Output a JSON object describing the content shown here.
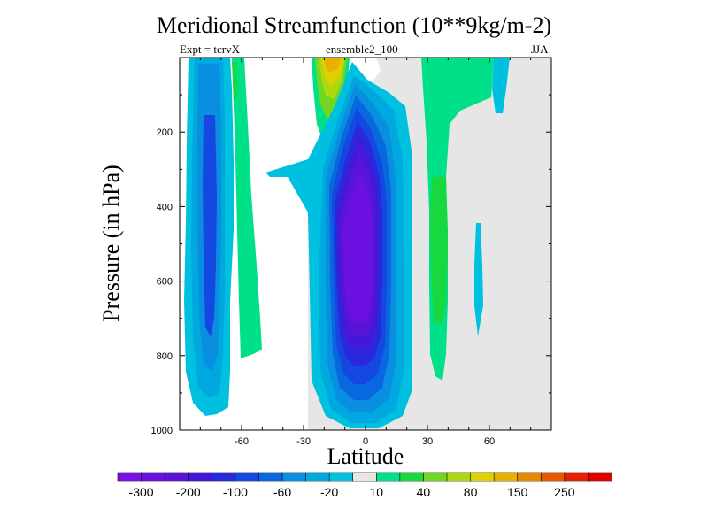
{
  "chart_data": {
    "type": "heatmap",
    "subtype": "filled-contour",
    "title": "Meridional Streamfunction (10**9kg/m-2)",
    "subtitle_left": "Expt = tcrvX",
    "subtitle_center": "ensemble2_100",
    "subtitle_right": "JJA",
    "xlabel": "Latitude",
    "ylabel": "Pressure (in hPa)",
    "xlim": [
      -90,
      90
    ],
    "ylim": [
      1000,
      0
    ],
    "x_ticks": [
      -60,
      -30,
      0,
      30,
      60
    ],
    "y_ticks": [
      200,
      400,
      600,
      800,
      1000
    ],
    "background_color": "#e6e6e6",
    "colorbar": {
      "levels": [
        -300,
        -250,
        -200,
        -150,
        -100,
        -80,
        -60,
        -40,
        -20,
        -10,
        10,
        20,
        40,
        60,
        80,
        100,
        150,
        200,
        250,
        300
      ],
      "labels": [
        "-300",
        "-200",
        "-100",
        "-60",
        "-20",
        "10",
        "40",
        "80",
        "150",
        "250"
      ],
      "colors": [
        "#7a0fe6",
        "#6a10e0",
        "#5a14d8",
        "#4418d8",
        "#2a28dc",
        "#1448e0",
        "#0868e0",
        "#0a8ee0",
        "#00a8e0",
        "#00c0e0",
        "#e6e6e6",
        "#00e088",
        "#18d840",
        "#70d820",
        "#b0d810",
        "#e0d000",
        "#e8b000",
        "#e88800",
        "#e85800",
        "#e82000",
        "#e00000"
      ]
    },
    "features": [
      {
        "name": "southern-hadley-cell",
        "lat_center": 0,
        "p_top": 50,
        "p_bottom": 990,
        "min_value": -300,
        "sign": "negative"
      },
      {
        "name": "southern-ferrel-cell",
        "lat_center": -70,
        "p_top": 0,
        "p_bottom": 970,
        "min_value": -100,
        "sign": "negative"
      },
      {
        "name": "southern-midlat-positive",
        "lat_center": -52,
        "p_top": 0,
        "p_bottom": 800,
        "max_value": 20,
        "sign": "positive"
      },
      {
        "name": "upper-tropical-positive",
        "lat_center": -15,
        "p_top": 0,
        "p_bottom": 230,
        "max_value": 150,
        "sign": "positive"
      },
      {
        "name": "northern-positive-column",
        "lat_center": 35,
        "p_top": 0,
        "p_bottom": 860,
        "max_value": 20,
        "sign": "positive"
      },
      {
        "name": "northern-negative-strip",
        "lat_center": 52,
        "p_top": 0,
        "p_bottom": 380,
        "min_value": -20,
        "sign": "negative"
      }
    ]
  }
}
